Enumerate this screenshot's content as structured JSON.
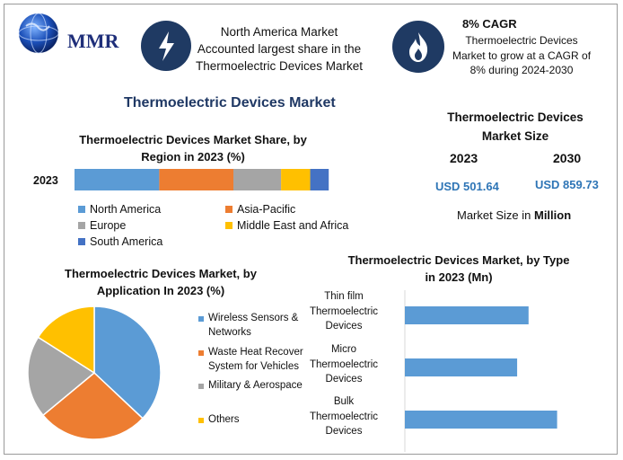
{
  "header": {
    "logo_text": "MMR",
    "callout1": {
      "lines": [
        "North America Market",
        "Accounted largest share in the",
        "Thermoelectric Devices Market"
      ]
    },
    "callout2": {
      "title": "8% CAGR",
      "lines": [
        "Thermoelectric Devices",
        "Market to grow at a CAGR of",
        "8% during 2024-2030"
      ]
    }
  },
  "main_title": "Thermoelectric Devices Market",
  "size_panel": {
    "title_lines": [
      "Thermoelectric Devices",
      "Market Size"
    ],
    "year1": "2023",
    "year2": "2030",
    "value1": "USD 501.64",
    "value2": "USD 859.73",
    "unit_prefix": "Market Size in ",
    "unit_bold": "Million",
    "colors": {
      "value": "#2e75b6"
    }
  },
  "chart_data": [
    {
      "type": "bar",
      "subtype": "stacked-horizontal",
      "title_lines": [
        "Thermoelectric Devices Market Share, by",
        "Region in 2023 (%)"
      ],
      "categories": [
        "2023"
      ],
      "series": [
        {
          "name": "North America",
          "values": [
            32
          ],
          "color": "#5b9bd5"
        },
        {
          "name": "Asia-Pacific",
          "values": [
            28
          ],
          "color": "#ed7d31"
        },
        {
          "name": "Europe",
          "values": [
            18
          ],
          "color": "#a5a5a5"
        },
        {
          "name": "Middle East and Africa",
          "values": [
            11
          ],
          "color": "#ffc000"
        },
        {
          "name": "South America",
          "values": [
            7
          ],
          "color": "#4472c4"
        }
      ],
      "xlim": [
        0,
        100
      ]
    },
    {
      "type": "pie",
      "title_lines": [
        "Thermoelectric Devices Market, by",
        "Application In 2023 (%)"
      ],
      "slices": [
        {
          "label_lines": [
            "Wireless Sensors &",
            "Networks"
          ],
          "value": 37,
          "color": "#5b9bd5"
        },
        {
          "label_lines": [
            "Waste Heat Recover",
            "System for Vehicles"
          ],
          "value": 27,
          "color": "#ed7d31"
        },
        {
          "label_lines": [
            "Military & Aerospace"
          ],
          "value": 20,
          "color": "#a5a5a5"
        },
        {
          "label_lines": [
            "Others"
          ],
          "value": 16,
          "color": "#ffc000"
        }
      ]
    },
    {
      "type": "bar",
      "subtype": "horizontal",
      "title_lines": [
        "Thermoelectric Devices Market, by Type",
        "in 2023 (Mn)"
      ],
      "categories": [
        [
          "Thin film",
          "Thermoelectric",
          "Devices"
        ],
        [
          "Micro",
          "Thermoelectric",
          "Devices"
        ],
        [
          "Bulk",
          "Thermoelectric",
          "Devices"
        ]
      ],
      "values": [
        130,
        118,
        160
      ],
      "xlim": [
        0,
        200
      ],
      "color": "#5b9bd5"
    }
  ]
}
